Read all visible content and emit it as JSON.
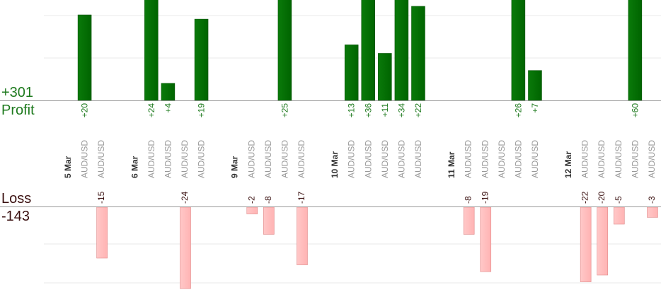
{
  "summary": {
    "profit_total": "+301",
    "profit_label": "Profit",
    "loss_label": "Loss",
    "loss_total": "-143"
  },
  "colors": {
    "profit_bar": "#006400",
    "profit_text": "#1e7a1e",
    "loss_bar": "#ffb3b3",
    "loss_text": "#3a1010",
    "date_label": "#333333",
    "pair_label": "#999999",
    "gridline": "#e8e8e8",
    "axis": "#999999"
  },
  "chart_data": {
    "type": "bar",
    "pair": "AUD/USD",
    "note_profit": "values above axis; some bars clipped at top of view",
    "columns": [
      {
        "label": "5 Mar",
        "kind": "date"
      },
      {
        "label": "AUD/USD",
        "kind": "trade",
        "profit": 20
      },
      {
        "label": "AUD/USD",
        "kind": "trade",
        "loss": -15
      },
      {
        "label": "",
        "kind": "gap"
      },
      {
        "label": "6 Mar",
        "kind": "date"
      },
      {
        "label": "AUD/USD",
        "kind": "trade",
        "profit": 24
      },
      {
        "label": "AUD/USD",
        "kind": "trade",
        "profit": 4
      },
      {
        "label": "AUD/USD",
        "kind": "trade",
        "loss": -24
      },
      {
        "label": "AUD/USD",
        "kind": "trade",
        "profit": 19
      },
      {
        "label": "",
        "kind": "gap"
      },
      {
        "label": "9 Mar",
        "kind": "date"
      },
      {
        "label": "AUD/USD",
        "kind": "trade",
        "loss": -2
      },
      {
        "label": "AUD/USD",
        "kind": "trade",
        "loss": -8
      },
      {
        "label": "AUD/USD",
        "kind": "trade",
        "profit": 25
      },
      {
        "label": "AUD/USD",
        "kind": "trade",
        "loss": -17
      },
      {
        "label": "",
        "kind": "gap"
      },
      {
        "label": "10 Mar",
        "kind": "date"
      },
      {
        "label": "AUD/USD",
        "kind": "trade",
        "profit": 13
      },
      {
        "label": "AUD/USD",
        "kind": "trade",
        "profit": 36
      },
      {
        "label": "AUD/USD",
        "kind": "trade",
        "profit": 11
      },
      {
        "label": "AUD/USD",
        "kind": "trade",
        "profit": 34
      },
      {
        "label": "AUD/USD",
        "kind": "trade",
        "profit": 22
      },
      {
        "label": "",
        "kind": "gap"
      },
      {
        "label": "11 Mar",
        "kind": "date"
      },
      {
        "label": "AUD/USD",
        "kind": "trade",
        "loss": -8
      },
      {
        "label": "AUD/USD",
        "kind": "trade",
        "loss": -19
      },
      {
        "label": "AUD/USD",
        "kind": "trade"
      },
      {
        "label": "AUD/USD",
        "kind": "trade",
        "profit": 26
      },
      {
        "label": "AUD/USD",
        "kind": "trade",
        "profit": 7
      },
      {
        "label": "",
        "kind": "gap"
      },
      {
        "label": "12 Mar",
        "kind": "date"
      },
      {
        "label": "AUD/USD",
        "kind": "trade",
        "loss": -22
      },
      {
        "label": "AUD/USD",
        "kind": "trade",
        "loss": -20
      },
      {
        "label": "AUD/USD",
        "kind": "trade",
        "loss": -5
      },
      {
        "label": "AUD/USD",
        "kind": "trade",
        "profit": 60
      },
      {
        "label": "AUD/USD",
        "kind": "trade",
        "loss": -3
      }
    ]
  }
}
